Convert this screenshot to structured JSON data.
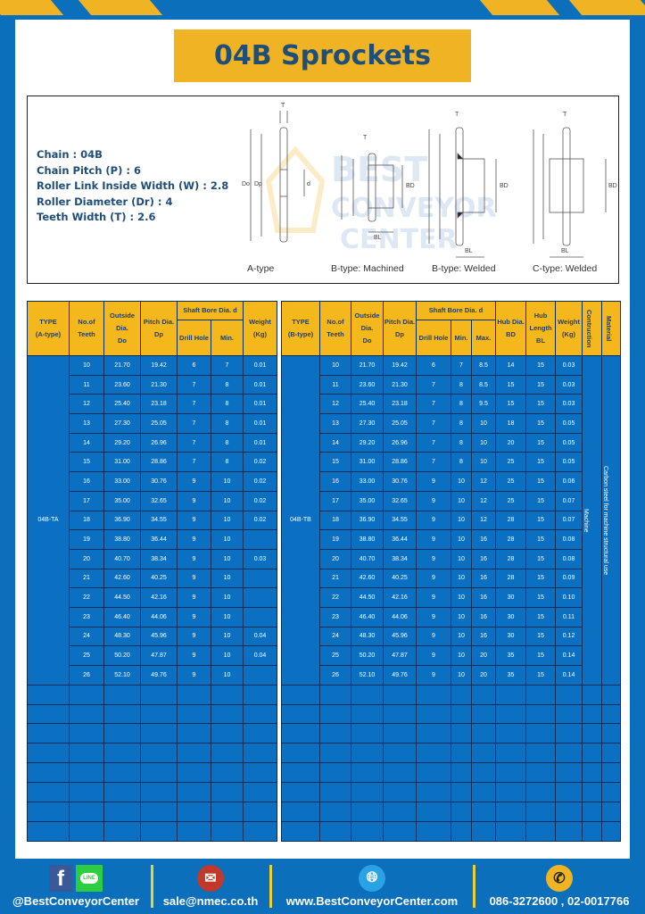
{
  "title": "04B Sprockets",
  "specs": [
    {
      "label": "Chain",
      "value": "04B",
      "text": "Chain  : 04B"
    },
    {
      "label": "Chain Pitch (P)",
      "value": "6",
      "text": "Chain Pitch (P)  :  6"
    },
    {
      "label": "Roller Link Inside Width (W)",
      "value": "2.8",
      "text": "Roller Link Inside Width (W)  :  2.8"
    },
    {
      "label": "Roller Diameter (Dr)",
      "value": "4",
      "text": "Roller Diameter (Dr)  : 4"
    },
    {
      "label": "Teeth Width (T)",
      "value": "2.6",
      "text": "Teeth Width (T)  :  2.6"
    }
  ],
  "diagram": {
    "captions": [
      "A-type",
      "B-type: Machined",
      "B-type: Welded",
      "C-type: Welded"
    ],
    "dim_labels": {
      "T": "T",
      "Do": "Do",
      "Dp": "Dp",
      "d": "d",
      "BD": "BD",
      "BL": "BL"
    },
    "watermark": "BEST CONVEYOR CENTER"
  },
  "colors": {
    "background": "#0b6fbb",
    "accent": "#f0b323",
    "header": "#f5b81c",
    "cell": "#0b6fc2",
    "title_text": "#1f4e79"
  },
  "table_a": {
    "headers": {
      "type": "TYPE",
      "type_sub": "(A-type)",
      "teeth": "No.of",
      "teeth_sub": "Teeth",
      "do": "Outside",
      "do_sub": "Dia.",
      "do_sub2": "Do",
      "dp": "Pitch Dia.",
      "dp_sub": "Dp",
      "bore": "Shaft Bore Dia. d",
      "drill": "Drill Hole",
      "min": "Min.",
      "weight": "Weight",
      "weight_sub": "(Kg)"
    },
    "type_value": "04B-TA",
    "rows": [
      [
        "10",
        "21.70",
        "19.42",
        "6",
        "7",
        "0.01"
      ],
      [
        "11",
        "23.60",
        "21.30",
        "7",
        "8",
        "0.01"
      ],
      [
        "12",
        "25.40",
        "23.18",
        "7",
        "8",
        "0.01"
      ],
      [
        "13",
        "27.30",
        "25.05",
        "7",
        "8",
        "0.01"
      ],
      [
        "14",
        "29.20",
        "26.96",
        "7",
        "8",
        "0.01"
      ],
      [
        "15",
        "31.00",
        "28.86",
        "7",
        "8",
        "0.02"
      ],
      [
        "16",
        "33.00",
        "30.76",
        "9",
        "10",
        "0.02"
      ],
      [
        "17",
        "35.00",
        "32.65",
        "9",
        "10",
        "0.02"
      ],
      [
        "18",
        "36.90",
        "34.55",
        "9",
        "10",
        "0.02"
      ],
      [
        "19",
        "38.80",
        "36.44",
        "9",
        "10",
        ""
      ],
      [
        "20",
        "40.70",
        "38.34",
        "9",
        "10",
        "0.03"
      ],
      [
        "21",
        "42.60",
        "40.25",
        "9",
        "10",
        ""
      ],
      [
        "22",
        "44.50",
        "42.16",
        "9",
        "10",
        ""
      ],
      [
        "23",
        "46.40",
        "44.06",
        "9",
        "10",
        ""
      ],
      [
        "24",
        "48.30",
        "45.96",
        "9",
        "10",
        "0.04"
      ],
      [
        "25",
        "50.20",
        "47.87",
        "9",
        "10",
        "0.04"
      ],
      [
        "26",
        "52.10",
        "49.76",
        "9",
        "10",
        ""
      ]
    ]
  },
  "table_b": {
    "headers": {
      "type": "TYPE",
      "type_sub": "(B-type)",
      "teeth": "No.of",
      "teeth_sub": "Teeth",
      "do": "Outside",
      "do_sub": "Dia.",
      "do_sub2": "Do",
      "dp": "Pitch Dia.",
      "dp_sub": "Dp",
      "bore": "Shaft Bore Dia. d",
      "drill": "Drill Hole",
      "min": "Min.",
      "max": "Max.",
      "bd": "Hub Dia.",
      "bd_sub": "BD",
      "bl": "Hub",
      "bl_sub": "Length",
      "bl_sub2": "BL",
      "weight": "Weight",
      "weight_sub": "(Kg)",
      "construction": "Contruction",
      "material": "Material"
    },
    "type_value": "04B-TB",
    "construction_value": "Machine",
    "material_value": "Carbon steel for machine structural use",
    "rows": [
      [
        "10",
        "21.70",
        "19.42",
        "6",
        "7",
        "8.5",
        "14",
        "15",
        "0.03"
      ],
      [
        "11",
        "23.60",
        "21.30",
        "7",
        "8",
        "8.5",
        "15",
        "15",
        "0.03"
      ],
      [
        "12",
        "25.40",
        "23.18",
        "7",
        "8",
        "9.5",
        "15",
        "15",
        "0.03"
      ],
      [
        "13",
        "27.30",
        "25.05",
        "7",
        "8",
        "10",
        "18",
        "15",
        "0.05"
      ],
      [
        "14",
        "29.20",
        "26.96",
        "7",
        "8",
        "10",
        "20",
        "15",
        "0.05"
      ],
      [
        "15",
        "31.00",
        "28.86",
        "7",
        "8",
        "10",
        "25",
        "15",
        "0.05"
      ],
      [
        "16",
        "33.00",
        "30.76",
        "9",
        "10",
        "12",
        "25",
        "15",
        "0.06"
      ],
      [
        "17",
        "35.00",
        "32.65",
        "9",
        "10",
        "12",
        "25",
        "15",
        "0.07"
      ],
      [
        "18",
        "36.90",
        "34.55",
        "9",
        "10",
        "12",
        "28",
        "15",
        "0.07"
      ],
      [
        "19",
        "38.80",
        "36.44",
        "9",
        "10",
        "16",
        "28",
        "15",
        "0.08"
      ],
      [
        "20",
        "40.70",
        "38.34",
        "9",
        "10",
        "16",
        "28",
        "15",
        "0.08"
      ],
      [
        "21",
        "42.60",
        "40.25",
        "9",
        "10",
        "16",
        "28",
        "15",
        "0.09"
      ],
      [
        "22",
        "44.50",
        "42.16",
        "9",
        "10",
        "16",
        "30",
        "15",
        "0.10"
      ],
      [
        "23",
        "46.40",
        "44.06",
        "9",
        "10",
        "16",
        "30",
        "15",
        "0.11"
      ],
      [
        "24",
        "48.30",
        "45.96",
        "9",
        "10",
        "16",
        "30",
        "15",
        "0.12"
      ],
      [
        "25",
        "50.20",
        "47.87",
        "9",
        "10",
        "20",
        "35",
        "15",
        "0.14"
      ],
      [
        "26",
        "52.10",
        "49.76",
        "9",
        "10",
        "20",
        "35",
        "15",
        "0.14"
      ]
    ]
  },
  "footer": {
    "social": "@BestConveyorCenter",
    "email": "sale@nmec.co.th",
    "website": "www.BestConveyorCenter.com",
    "phone": "086-3272600 , 02-0017766",
    "line_icon_text": "LINE",
    "icons": [
      "facebook-icon",
      "line-icon",
      "mail-icon",
      "globe-icon",
      "phone-icon"
    ]
  }
}
